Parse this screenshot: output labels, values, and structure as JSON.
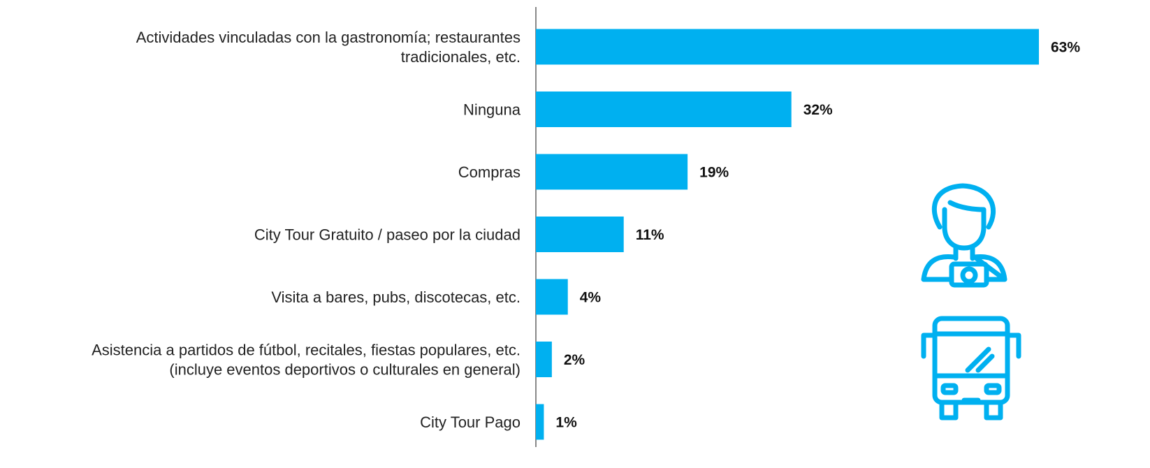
{
  "chart_data": {
    "type": "bar",
    "orientation": "horizontal",
    "categories": [
      "Actividades vinculadas con la gastronomía; restaurantes\ntradicionales, etc.",
      "Ninguna",
      "Compras",
      "City Tour Gratuito / paseo por la ciudad",
      "Visita a bares, pubs, discotecas, etc.",
      "Asistencia a partidos de fútbol, recitales, fiestas populares, etc.\n(incluye eventos deportivos o culturales en general)",
      "City Tour Pago"
    ],
    "values": [
      63,
      32,
      19,
      11,
      4,
      2,
      1
    ],
    "value_labels": [
      "63%",
      "32%",
      "19%",
      "11%",
      "4%",
      "2%",
      "1%"
    ],
    "color": "#00b0f0"
  }
}
